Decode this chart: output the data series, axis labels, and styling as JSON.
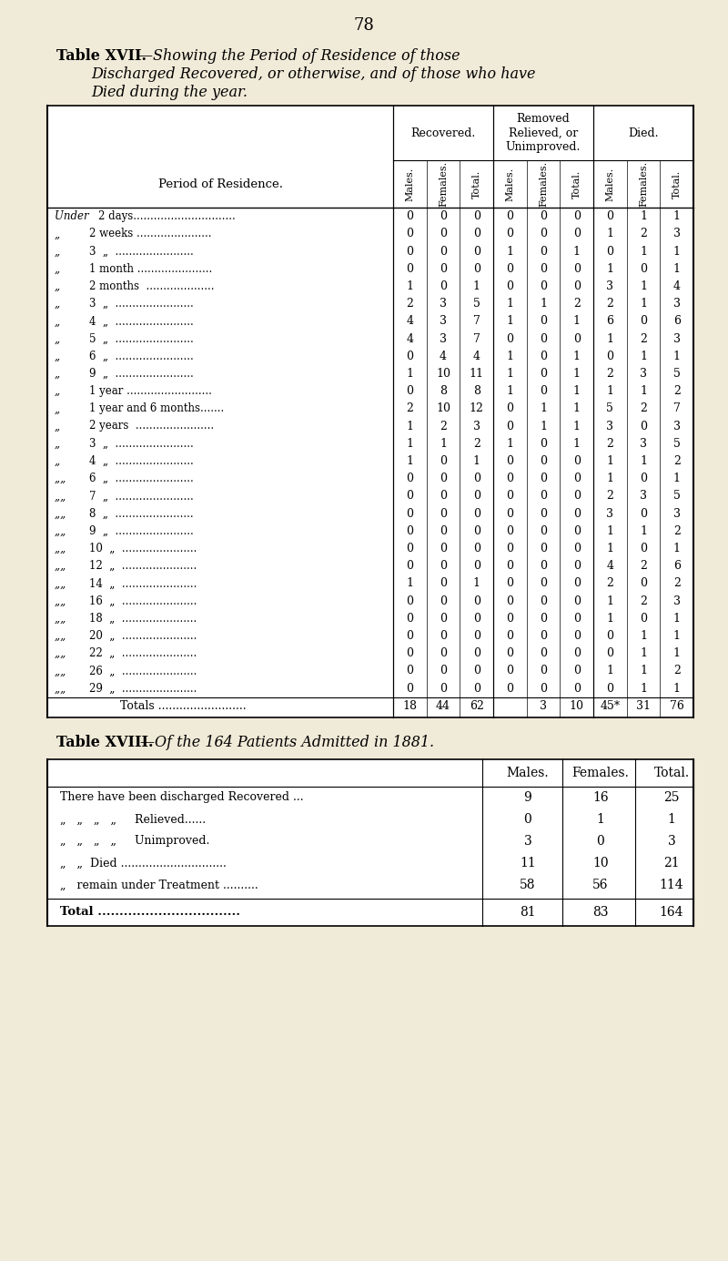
{
  "page_number": "78",
  "bg_color": "#f0ead8",
  "table17": {
    "rows": [
      [
        "Under 2 days",
        0,
        0,
        0,
        0,
        0,
        0,
        0,
        1,
        1
      ],
      [
        "2 weeks",
        0,
        0,
        0,
        0,
        0,
        0,
        1,
        2,
        3
      ],
      [
        "3  „",
        0,
        0,
        0,
        1,
        0,
        1,
        0,
        1,
        1
      ],
      [
        "1 month",
        0,
        0,
        0,
        0,
        0,
        0,
        1,
        0,
        1
      ],
      [
        "2 months",
        1,
        0,
        1,
        0,
        0,
        0,
        3,
        1,
        4
      ],
      [
        "3  „",
        2,
        3,
        5,
        1,
        1,
        2,
        2,
        1,
        3
      ],
      [
        "4  „",
        4,
        3,
        7,
        1,
        0,
        1,
        6,
        0,
        6
      ],
      [
        "5  „",
        4,
        3,
        7,
        0,
        0,
        0,
        1,
        2,
        3
      ],
      [
        "6  „",
        0,
        4,
        4,
        1,
        0,
        1,
        0,
        1,
        1
      ],
      [
        "9  „",
        1,
        10,
        11,
        1,
        0,
        1,
        2,
        3,
        5
      ],
      [
        "1 year",
        0,
        8,
        8,
        1,
        0,
        1,
        1,
        1,
        2
      ],
      [
        "1 year and 6 months",
        2,
        10,
        12,
        0,
        1,
        1,
        5,
        2,
        7
      ],
      [
        "2 years",
        1,
        2,
        3,
        0,
        1,
        1,
        3,
        0,
        3
      ],
      [
        "3  „",
        1,
        1,
        2,
        1,
        0,
        1,
        2,
        3,
        5
      ],
      [
        "4  „",
        1,
        0,
        1,
        0,
        0,
        0,
        1,
        1,
        2
      ],
      [
        "6  „",
        0,
        0,
        0,
        0,
        0,
        0,
        1,
        0,
        1
      ],
      [
        "7  „",
        0,
        0,
        0,
        0,
        0,
        0,
        2,
        3,
        5
      ],
      [
        "8  „",
        0,
        0,
        0,
        0,
        0,
        0,
        3,
        0,
        3
      ],
      [
        "9  „",
        0,
        0,
        0,
        0,
        0,
        0,
        1,
        1,
        2
      ],
      [
        "10  „",
        0,
        0,
        0,
        0,
        0,
        0,
        1,
        0,
        1
      ],
      [
        "12  „",
        0,
        0,
        0,
        0,
        0,
        0,
        4,
        2,
        6
      ],
      [
        "14  „",
        1,
        0,
        1,
        0,
        0,
        0,
        2,
        0,
        2
      ],
      [
        "16  „",
        0,
        0,
        0,
        0,
        0,
        0,
        1,
        2,
        3
      ],
      [
        "18  „",
        0,
        0,
        0,
        0,
        0,
        0,
        1,
        0,
        1
      ],
      [
        "20  „",
        0,
        0,
        0,
        0,
        0,
        0,
        0,
        1,
        1
      ],
      [
        "22  „",
        0,
        0,
        0,
        0,
        0,
        0,
        0,
        1,
        1
      ],
      [
        "26  „",
        0,
        0,
        0,
        0,
        0,
        0,
        1,
        1,
        2
      ],
      [
        "29  „",
        0,
        0,
        0,
        0,
        0,
        0,
        0,
        1,
        1
      ],
      [
        "Totals",
        18,
        44,
        62,
        "",
        3,
        10,
        "45*",
        31,
        76
      ]
    ],
    "dot_labels": [
      "2 days..............................",
      "2 weeks ......................",
      "3  „  .......................",
      "1 month ......................",
      "2 months  ....................",
      "3  „  .......................",
      "4  „  .......................",
      "5  „  .......................",
      "6  „  .......................",
      "9  „  .......................",
      "1 year .........................",
      "1 year and 6 months.......",
      "2 years  .......................",
      "3  „  .......................",
      "4  „  .......................",
      "6  „  .......................",
      "7  „  .......................",
      "8  „  .......................",
      "9  „  .......................",
      "10  „  ......................",
      "12  „  ......................",
      "14  „  ......................",
      "16  „  ......................",
      "18  „  ......................",
      "20  „  ......................",
      "22  „  ......................",
      "26  „  ......................",
      "29  „  ......................",
      "Totals ........................."
    ],
    "prefixes": [
      "Under ",
      "„ ",
      "„ ",
      "„ ",
      "„ ",
      "„ ",
      "„ ",
      "„ ",
      "„ ",
      "„ ",
      "„ ",
      "„ ",
      "„ ",
      "„ ",
      "„ ",
      "„„ ",
      "„„ ",
      "„„ ",
      "„„ ",
      "„„ ",
      "„„ ",
      "„„ ",
      "„„ ",
      "„„ ",
      "„„ ",
      "„„ ",
      "„„ ",
      "„„ ",
      ""
    ]
  },
  "table18": {
    "col_headers": [
      "Males.",
      "Females.",
      "Total."
    ],
    "rows": [
      [
        "There have been discharged Recovered ...",
        9,
        16,
        25
      ],
      [
        "„   „   „   „   Relieved......",
        0,
        1,
        1
      ],
      [
        "„   „   „   „   Unimproved.",
        3,
        0,
        3
      ],
      [
        "„   „  Died ..............................",
        11,
        10,
        21
      ],
      [
        "„   remain under Treatment ..........",
        58,
        56,
        114
      ]
    ],
    "total_row": [
      "Total .................................",
      81,
      83,
      164
    ]
  }
}
